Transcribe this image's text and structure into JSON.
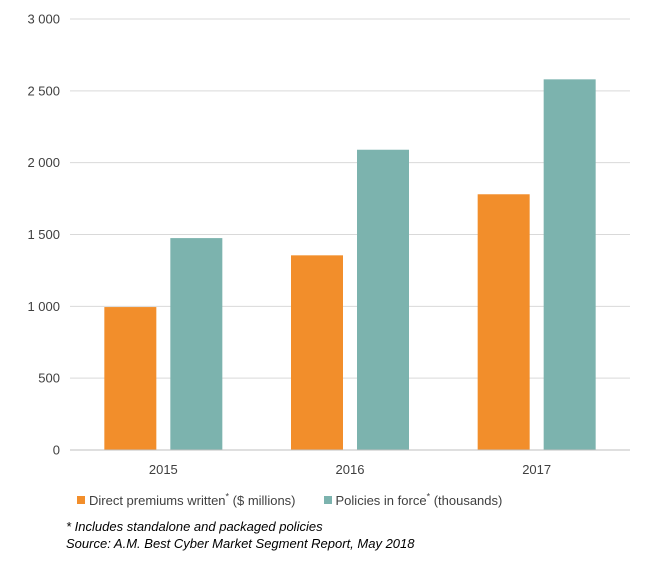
{
  "chart_data": {
    "type": "bar",
    "categories": [
      "2015",
      "2016",
      "2017"
    ],
    "series": [
      {
        "name": "Direct premiums written* ($ millions)",
        "color": "#F28E2B",
        "values": [
          995,
          1355,
          1780
        ]
      },
      {
        "name": "Policies in force* (thousands)",
        "color": "#7CB3AE",
        "values": [
          1475,
          2090,
          2580
        ]
      }
    ],
    "yticks": [
      "0",
      "500",
      "1 000",
      "1 500",
      "2 000",
      "2 500",
      "3 000"
    ],
    "ylim": [
      0,
      3000
    ],
    "grid": true,
    "legend_position": "bottom",
    "title": "",
    "xlabel": "",
    "ylabel": ""
  },
  "legend": {
    "s1_main": "Direct premiums written",
    "s1_star": "*",
    "s1_rest": " ($ millions)",
    "s2_main": "Policies in force",
    "s2_star": "*",
    "s2_rest": " (thousands)"
  },
  "notes": {
    "footnote": "* Includes standalone and packaged policies",
    "source": "Source: A.M. Best Cyber Market Segment Report, May 2018"
  }
}
